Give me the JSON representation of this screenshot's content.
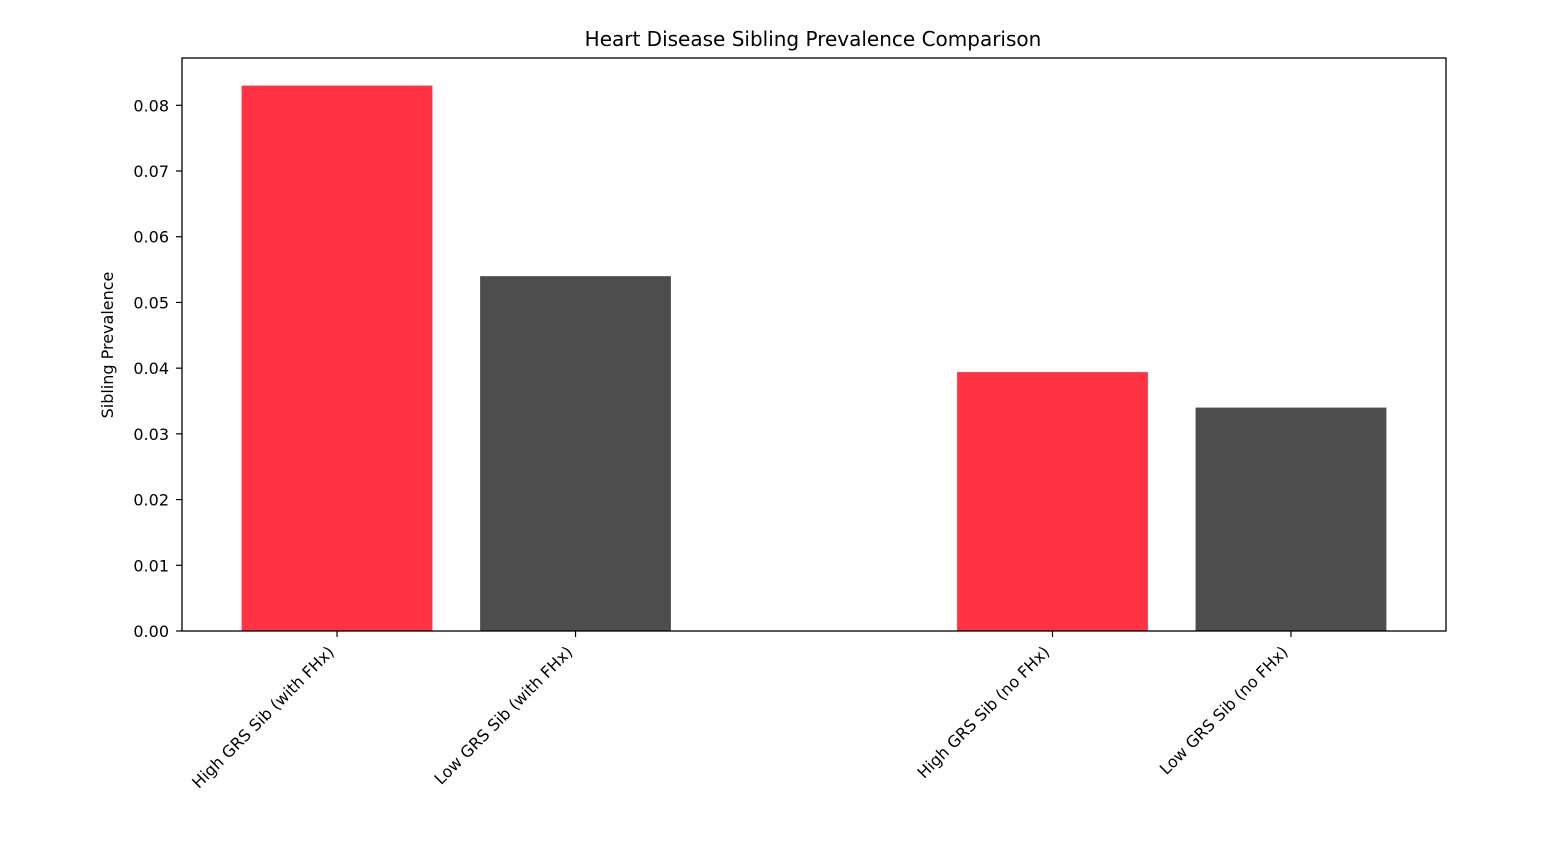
{
  "chart_data": {
    "type": "bar",
    "title": "Heart Disease Sibling Prevalence Comparison",
    "xlabel": "",
    "ylabel": "Sibling Prevalence",
    "ylim": [
      0,
      0.0872
    ],
    "yticks": [
      0.0,
      0.01,
      0.02,
      0.03,
      0.04,
      0.05,
      0.06,
      0.07,
      0.08
    ],
    "ytick_labels": [
      "0.00",
      "0.01",
      "0.02",
      "0.03",
      "0.04",
      "0.05",
      "0.06",
      "0.07",
      "0.08"
    ],
    "grid": false,
    "legend": false,
    "categories": [
      "High GRS Sib (with FHx)",
      "Low GRS Sib (with FHx)",
      "High GRS Sib (no FHx)",
      "Low GRS Sib (no FHx)"
    ],
    "x_positions": [
      0,
      1,
      3,
      4
    ],
    "xlim": [
      -0.65,
      4.65
    ],
    "values": [
      0.083,
      0.054,
      0.0394,
      0.034
    ],
    "bar_colors": [
      "#ff3344",
      "#4d4d4d",
      "#ff3344",
      "#4d4d4d"
    ]
  }
}
